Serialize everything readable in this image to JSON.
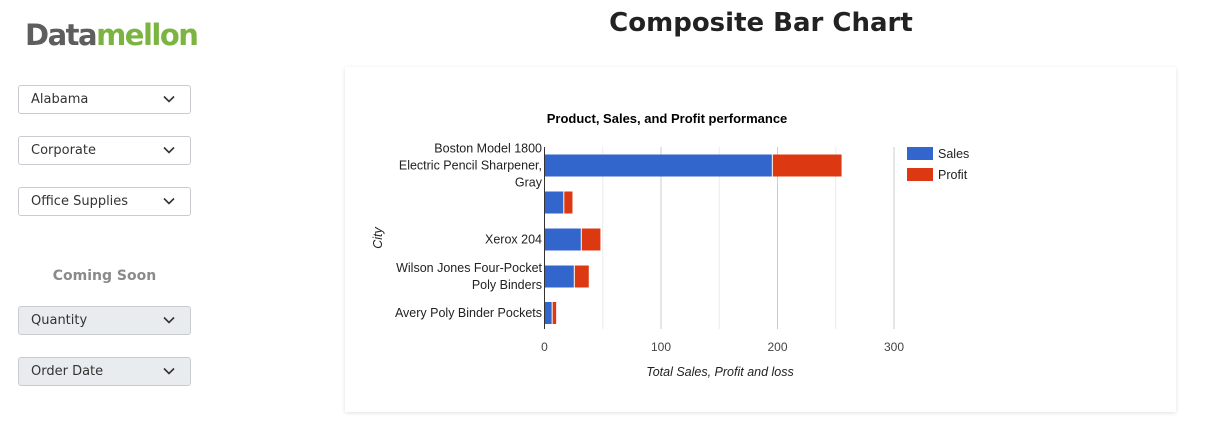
{
  "logo": {
    "part1": "Data",
    "part2": "mellon"
  },
  "filters": [
    {
      "value": "Alabama"
    },
    {
      "value": "Corporate"
    },
    {
      "value": "Office Supplies"
    }
  ],
  "coming_soon": {
    "label": "Coming Soon",
    "filters": [
      {
        "value": "Quantity"
      },
      {
        "value": "Order Date"
      }
    ]
  },
  "page_title": "Composite Bar Chart",
  "colors": {
    "sales": "#3366cc",
    "profit": "#dc3912",
    "logo_gray": "#5e5e5e",
    "logo_green": "#7bb441"
  },
  "chart_data": {
    "type": "bar",
    "orientation": "horizontal",
    "stacked": true,
    "title": "Product, Sales, and Profit performance",
    "xlabel": "Total Sales, Profit and loss",
    "ylabel": "City",
    "xlim": [
      0,
      300
    ],
    "xticks": [
      "0",
      "100",
      "200",
      "300"
    ],
    "grid": true,
    "legend_position": "right",
    "categories": [
      [
        "Boston Model 1800",
        "Electric Pencil Sharpener,",
        "Gray"
      ],
      [],
      [
        "Xerox 204"
      ],
      [
        "Wilson Jones Four-Pocket",
        "Poly Binders"
      ],
      [
        "Avery Poly Binder Pockets"
      ]
    ],
    "series": [
      {
        "name": "Sales",
        "values": [
          196,
          17,
          32,
          26,
          7
        ]
      },
      {
        "name": "Profit",
        "values": [
          59,
          7,
          16,
          12,
          3
        ]
      }
    ]
  }
}
